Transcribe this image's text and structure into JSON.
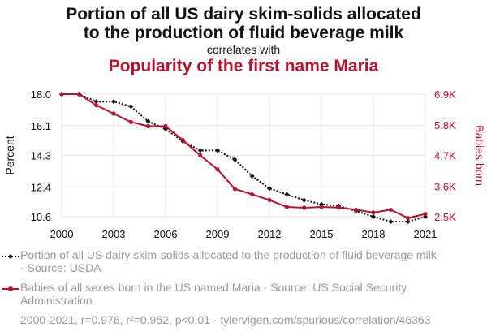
{
  "header": {
    "title_line1": "Portion of all US dairy skim-solids allocated",
    "title_line2": "to the production of fluid beverage milk",
    "connector": "correlates with",
    "title2": "Popularity of the first name Maria"
  },
  "legend": {
    "series1": "Portion of all US dairy skim-solids allocated to the production of fluid beverage milk · Source: USDA",
    "series2": "Babies of all sexes born in the US named Maria · Source: US Social Security Administration"
  },
  "footer": "2000-2021, r=0.976, r²=0.952, p<0.01 · tylervigen.com/spurious/correlation/46363",
  "colors": {
    "series1": "#111111",
    "series2": "#b5122e",
    "grid": "#e6e6e6"
  },
  "chart_data": {
    "type": "line",
    "x": [
      2000,
      2001,
      2002,
      2003,
      2004,
      2005,
      2006,
      2007,
      2008,
      2009,
      2010,
      2011,
      2012,
      2013,
      2014,
      2015,
      2016,
      2017,
      2018,
      2019,
      2020,
      2021
    ],
    "xticks": [
      "2000",
      "2003",
      "2006",
      "2009",
      "2012",
      "2015",
      "2018",
      "2021"
    ],
    "xlim": [
      2000,
      2021
    ],
    "grid": true,
    "left_axis": {
      "label": "Percent",
      "ticks": [
        "18.0",
        "16.1",
        "14.3",
        "12.4",
        "10.6"
      ],
      "tick_values": [
        18.0,
        16.1,
        14.3,
        12.4,
        10.6
      ],
      "ylim": [
        10.6,
        18.0
      ]
    },
    "right_axis": {
      "label": "Babies born",
      "ticks": [
        "6.9K",
        "5.8K",
        "4.7K",
        "3.6K",
        "2.5K"
      ],
      "tick_values": [
        6900,
        5800,
        4700,
        3600,
        2500
      ],
      "ylim": [
        2500,
        6900
      ]
    },
    "series": [
      {
        "name": "Portion of all US dairy skim-solids allocated to the production of fluid beverage milk",
        "axis": "left",
        "style": "dotted",
        "marker": "diamond",
        "values": [
          18.0,
          18.0,
          17.55,
          17.55,
          17.25,
          16.35,
          15.9,
          15.15,
          14.6,
          14.6,
          14.05,
          13.05,
          12.3,
          11.95,
          11.6,
          11.35,
          11.25,
          10.95,
          10.6,
          10.3,
          10.3,
          10.6
        ]
      },
      {
        "name": "Babies of all sexes born in the US named Maria",
        "axis": "right",
        "style": "solid",
        "marker": "circle",
        "values": [
          6900,
          6900,
          6500,
          6200,
          5900,
          5750,
          5750,
          5250,
          4700,
          4200,
          3500,
          3300,
          3100,
          2850,
          2820,
          2850,
          2830,
          2750,
          2650,
          2750,
          2450,
          2600
        ]
      }
    ]
  }
}
